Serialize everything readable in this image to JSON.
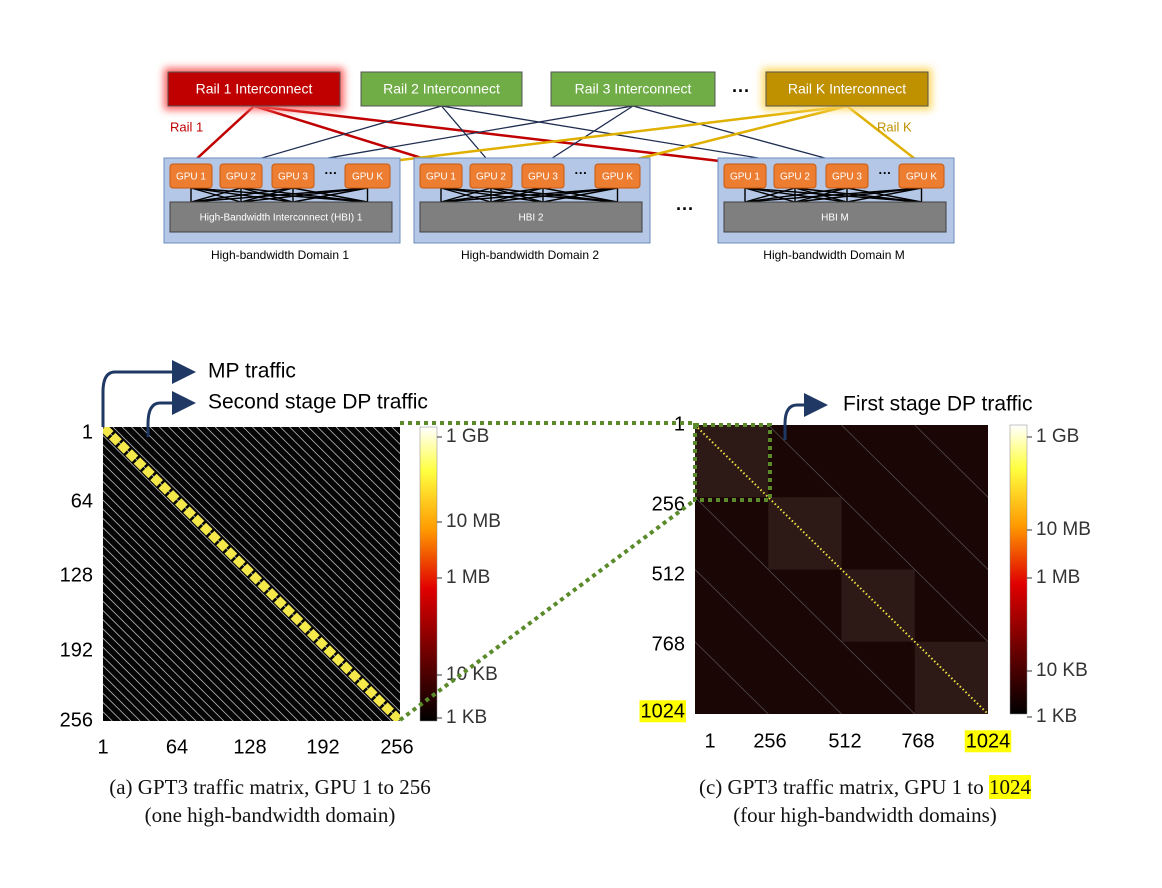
{
  "diagram": {
    "interconnects": [
      "Rail 1 Interconnect",
      "Rail 2 Interconnect",
      "Rail 3 Interconnect",
      "Rail K Interconnect"
    ],
    "ellipsis": "···",
    "rail_labels": [
      "Rail 1",
      "Rail K"
    ],
    "domains": [
      {
        "gpus": [
          "GPU 1",
          "GPU 2",
          "GPU 3",
          "GPU K"
        ],
        "hbi": "High-Bandwidth Interconnect (HBI) 1",
        "label": "High-bandwidth Domain 1"
      },
      {
        "gpus": [
          "GPU 1",
          "GPU 2",
          "GPU 3",
          "GPU K"
        ],
        "hbi": "HBI 2",
        "label": "High-bandwidth Domain 2"
      },
      {
        "gpus": [
          "GPU 1",
          "GPU 2",
          "GPU 3",
          "GPU K"
        ],
        "hbi": "HBI M",
        "label": "High-bandwidth Domain M"
      }
    ]
  },
  "panels": [
    {
      "annotations": [
        "MP traffic",
        "Second stage DP traffic"
      ],
      "y_ticks": [
        "1",
        "64",
        "128",
        "192",
        "256"
      ],
      "x_ticks": [
        "1",
        "64",
        "128",
        "192",
        "256"
      ],
      "colorbar": [
        "1 GB",
        "10 MB",
        "1 MB",
        "10 KB",
        "1 KB"
      ],
      "caption": [
        "(a) GPT3 traffic matrix, GPU 1 to 256",
        "(one high-bandwidth domain)"
      ]
    },
    {
      "annotations": [
        "First stage DP traffic"
      ],
      "y_ticks": [
        "1",
        "256",
        "512",
        "768",
        "1024"
      ],
      "x_ticks": [
        "1",
        "256",
        "512",
        "768",
        "1024"
      ],
      "colorbar": [
        "1 GB",
        "10 MB",
        "1 MB",
        "10 KB",
        "1 KB"
      ],
      "caption": [
        "(c) GPT3 traffic matrix, GPU 1 to",
        "(four high-bandwidth domains)"
      ],
      "caption_highlight": "1024",
      "highlight_last_tick": true
    }
  ]
}
